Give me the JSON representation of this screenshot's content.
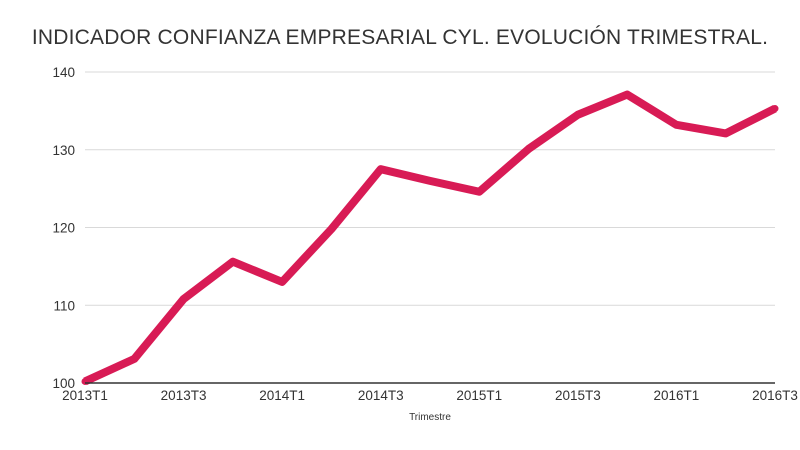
{
  "chart_data": {
    "type": "line",
    "title": "INDICADOR CONFIANZA EMPRESARIAL CYL. EVOLUCIÓN TRIMESTRAL.",
    "xlabel": "Trimestre",
    "ylabel": "",
    "ylim": [
      100,
      140
    ],
    "yticks": [
      100,
      110,
      120,
      130,
      140
    ],
    "grid": true,
    "legend": "none",
    "categories": [
      "2013T1",
      "2013T2",
      "2013T3",
      "2013T4",
      "2014T1",
      "2014T2",
      "2014T3",
      "2014T4",
      "2015T1",
      "2015T2",
      "2015T3",
      "2015T4",
      "2016T1",
      "2016T2",
      "2016T3"
    ],
    "xtick_labels": [
      "2013T1",
      "2013T3",
      "2014T1",
      "2014T3",
      "2015T1",
      "2015T3",
      "2016T1",
      "2016T3"
    ],
    "series": [
      {
        "color": "#d81b55",
        "values": [
          100.2,
          103.1,
          110.8,
          115.6,
          113.0,
          119.8,
          127.5,
          126.0,
          124.6,
          130.1,
          134.5,
          137.1,
          133.2,
          132.1,
          135.3
        ]
      }
    ]
  }
}
